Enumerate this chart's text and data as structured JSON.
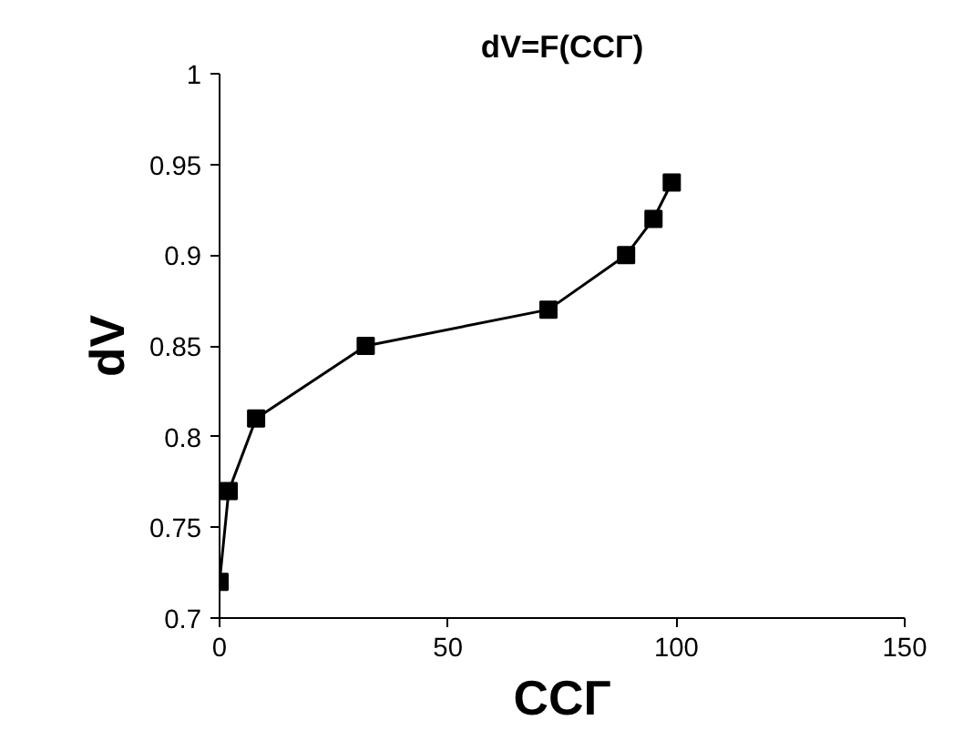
{
  "chart_data": {
    "type": "line",
    "title": "dV=F(CCГ)",
    "xlabel": "CCГ",
    "ylabel": "dV",
    "x": [
      0,
      2,
      8,
      32,
      72,
      89,
      95,
      99
    ],
    "series": [
      {
        "color": "#000000",
        "values": [
          0.72,
          0.77,
          0.81,
          0.85,
          0.87,
          0.9,
          0.92,
          0.94
        ]
      }
    ],
    "xlim": [
      0,
      150
    ],
    "xticks": [
      0,
      50,
      100,
      150
    ],
    "ylim": [
      0.7,
      1
    ],
    "yticks": [
      0.7,
      0.75,
      0.8,
      0.85,
      0.9,
      0.95,
      1
    ],
    "marker": "square",
    "line_style": "solid",
    "grid": false
  }
}
